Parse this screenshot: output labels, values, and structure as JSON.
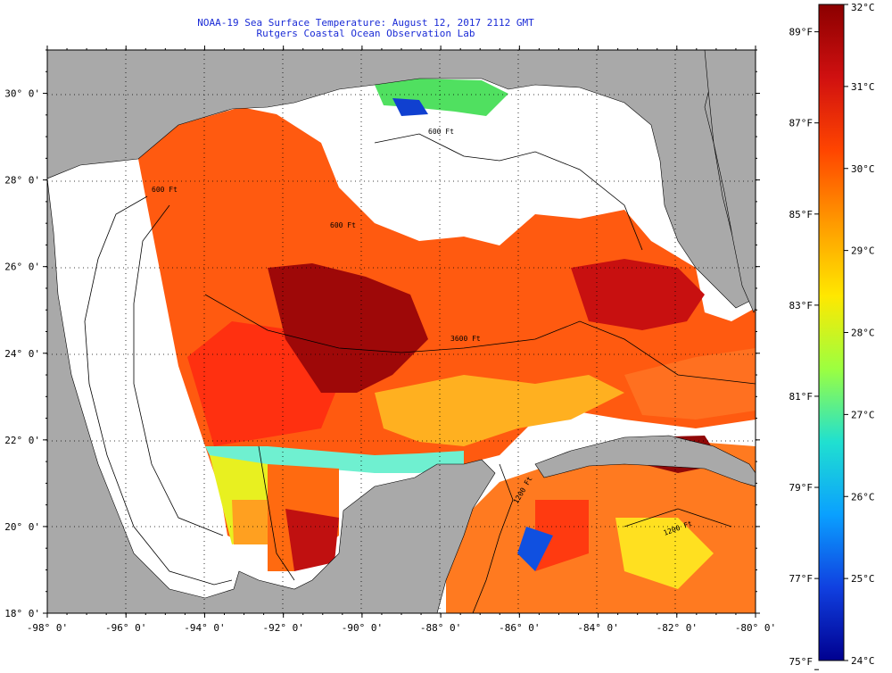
{
  "title_line1": "NOAA-19 Sea Surface Temperature:  August 12, 2017 2112 GMT",
  "title_line2": "Rutgers Coastal Ocean Observation Lab",
  "map": {
    "lon_range": [
      -98,
      -80
    ],
    "lat_range": [
      18,
      31
    ],
    "lon_ticks": [
      "-98° 0'",
      "-96° 0'",
      "-94° 0'",
      "-92° 0'",
      "-90° 0'",
      "-88° 0'",
      "-86° 0'",
      "-84° 0'",
      "-82° 0'",
      "-80° 0'"
    ],
    "lat_ticks": [
      "18° 0'",
      "20° 0'",
      "22° 0'",
      "24° 0'",
      "26° 0'",
      "28° 0'",
      "30° 0'"
    ],
    "contour_labels": [
      "600 Ft",
      "600 Ft",
      "600 Ft",
      "3600 Ft",
      "1200 Ft",
      "1200 Ft"
    ],
    "land_color": "#a9a9a9",
    "nodata_color": "#ffffff"
  },
  "colorbar": {
    "celsius": [
      "32°C",
      "31°C",
      "30°C",
      "29°C",
      "28°C",
      "27°C",
      "26°C",
      "25°C",
      "24°C"
    ],
    "fahrenheit": [
      "89°F",
      "87°F",
      "85°F",
      "83°F",
      "81°F",
      "79°F",
      "77°F",
      "75°F"
    ],
    "celsius_range": [
      24,
      32
    ],
    "colors_top_to_bottom": [
      "#8b0000",
      "#d01010",
      "#ff4500",
      "#ff9a00",
      "#ffe800",
      "#9cff40",
      "#20e0d0",
      "#0aa0ff",
      "#1040e0",
      "#000090"
    ]
  }
}
